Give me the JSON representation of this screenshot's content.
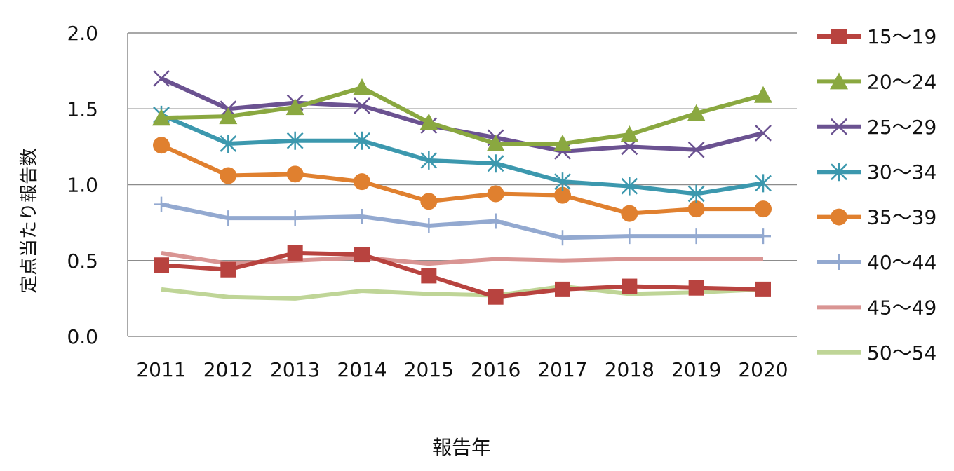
{
  "chart_data": {
    "type": "line",
    "title": "",
    "xlabel": "報告年",
    "ylabel": "定点当たり報告数",
    "ylim": [
      0,
      2.0
    ],
    "yticks": [
      "0.0",
      "0.5",
      "1.0",
      "1.5",
      "2.0"
    ],
    "grid": true,
    "legend_position": "right",
    "categories": [
      "2011",
      "2012",
      "2013",
      "2014",
      "2015",
      "2016",
      "2017",
      "2018",
      "2019",
      "2020"
    ],
    "series": [
      {
        "name": "15～19",
        "color": "#b8433f",
        "marker": "square",
        "values": [
          0.47,
          0.44,
          0.55,
          0.54,
          0.4,
          0.26,
          0.31,
          0.33,
          0.32,
          0.31
        ]
      },
      {
        "name": "20～24",
        "color": "#8aa840",
        "marker": "triangle",
        "values": [
          1.44,
          1.45,
          1.51,
          1.64,
          1.41,
          1.27,
          1.27,
          1.33,
          1.47,
          1.59
        ]
      },
      {
        "name": "25～29",
        "color": "#6b5291",
        "marker": "x",
        "values": [
          1.7,
          1.5,
          1.54,
          1.52,
          1.39,
          1.31,
          1.22,
          1.25,
          1.23,
          1.34
        ]
      },
      {
        "name": "30～34",
        "color": "#3c98ae",
        "marker": "asterisk",
        "values": [
          1.46,
          1.27,
          1.29,
          1.29,
          1.16,
          1.14,
          1.02,
          0.99,
          0.94,
          1.01
        ]
      },
      {
        "name": "35～39",
        "color": "#e0802f",
        "marker": "circle",
        "values": [
          1.26,
          1.06,
          1.07,
          1.02,
          0.89,
          0.94,
          0.93,
          0.81,
          0.84,
          0.84
        ]
      },
      {
        "name": "40～44",
        "color": "#93a9d0",
        "marker": "plus",
        "values": [
          0.87,
          0.78,
          0.78,
          0.79,
          0.73,
          0.76,
          0.65,
          0.66,
          0.66,
          0.66
        ]
      },
      {
        "name": "45～49",
        "color": "#d99593",
        "marker": "none",
        "values": [
          0.55,
          0.48,
          0.5,
          0.52,
          0.48,
          0.51,
          0.5,
          0.51,
          0.51,
          0.51
        ]
      },
      {
        "name": "50～54",
        "color": "#bfd597",
        "marker": "none",
        "values": [
          0.31,
          0.26,
          0.25,
          0.3,
          0.28,
          0.27,
          0.33,
          0.28,
          0.29,
          0.31
        ]
      }
    ]
  }
}
